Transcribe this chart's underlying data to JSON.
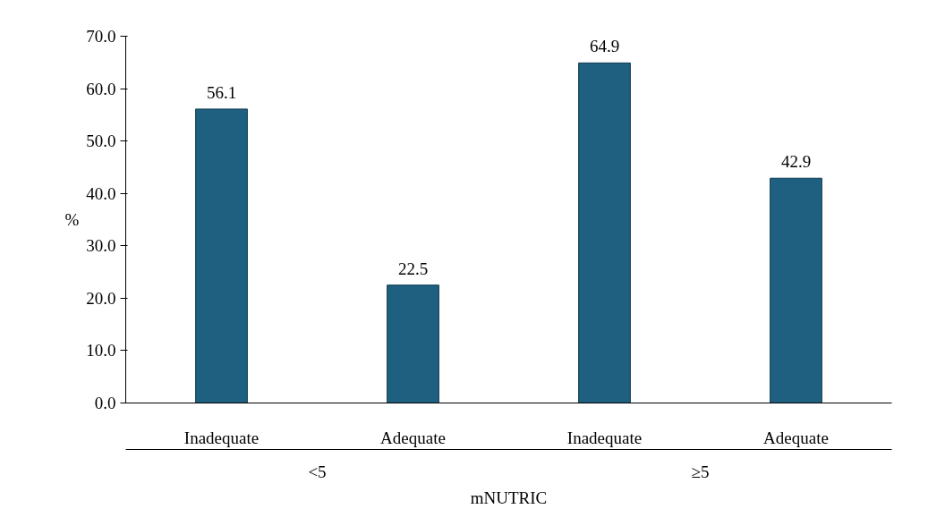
{
  "chart_data": {
    "type": "bar",
    "xlabel": "mNUTRIC",
    "ylabel": "%",
    "categories": [
      "Inadequate",
      "Adequate",
      "Inadequate",
      "Adequate"
    ],
    "values": [
      56.1,
      22.5,
      64.9,
      42.9
    ],
    "color": "#1f5f80",
    "ylim": [
      0,
      70
    ],
    "yticks": [
      {
        "value": 0,
        "label": "0.0"
      },
      {
        "value": 10,
        "label": "10.0"
      },
      {
        "value": 20,
        "label": "20.0"
      },
      {
        "value": 30,
        "label": "30.0"
      },
      {
        "value": 40,
        "label": "40.0"
      },
      {
        "value": 50,
        "label": "50.0"
      },
      {
        "value": 60,
        "label": "60.0"
      },
      {
        "value": 70,
        "label": "70.0"
      }
    ],
    "annotations": [
      "<5",
      "≥5"
    ],
    "data_labels": true,
    "grid": false
  }
}
